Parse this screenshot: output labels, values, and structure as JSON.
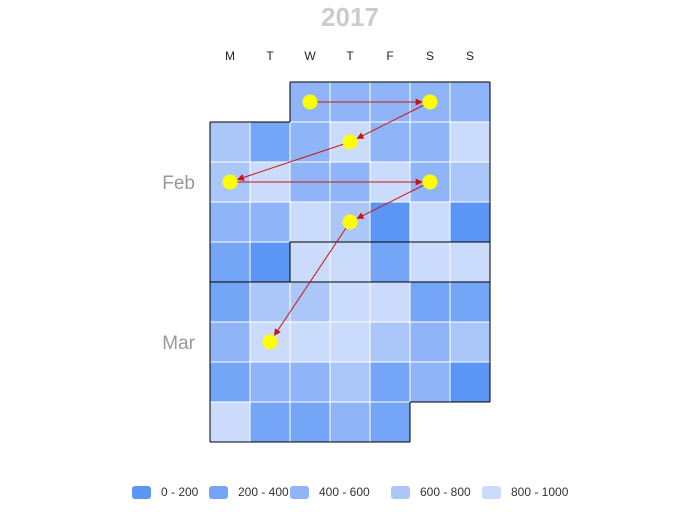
{
  "chart_data": {
    "type": "heatmap",
    "title": "2017",
    "weekdays": [
      "M",
      "T",
      "W",
      "T",
      "F",
      "S",
      "S"
    ],
    "month_labels": [
      {
        "label": "Feb",
        "week": 2
      },
      {
        "label": "Mar",
        "week": 6
      }
    ],
    "colors": {
      "0-200": "#5b95f5",
      "200-400": "#75a5f6",
      "400-600": "#8fb4f8",
      "600-800": "#abc7fa",
      "800-1000": "#cadbfb",
      "grid_line": "#ffffff",
      "border": "#000000",
      "marker": "#ffff00",
      "arrow": "#cc1111"
    },
    "legend": [
      {
        "label": "0 - 200",
        "bin": "0-200"
      },
      {
        "label": "200 - 400",
        "bin": "200-400"
      },
      {
        "label": "400 - 600",
        "bin": "400-600"
      },
      {
        "label": "600 - 800",
        "bin": "600-800"
      },
      {
        "label": "800 - 1000",
        "bin": "800-1000"
      }
    ],
    "weeks": [
      [
        null,
        null,
        "400-600",
        "400-600",
        "400-600",
        "400-600",
        "400-600"
      ],
      [
        "600-800",
        "200-400",
        "400-600",
        "800-1000",
        "400-600",
        "400-600",
        "800-1000"
      ],
      [
        "600-800",
        "800-1000",
        "400-600",
        "400-600",
        "800-1000",
        "400-600",
        "600-800"
      ],
      [
        "400-600",
        "400-600",
        "800-1000",
        "600-800",
        "0-200",
        "800-1000",
        "0-200"
      ],
      [
        "200-400",
        "0-200",
        "800-1000",
        "800-1000",
        "200-400",
        "800-1000",
        "800-1000"
      ],
      [
        "200-400",
        "600-800",
        "600-800",
        "800-1000",
        "800-1000",
        "200-400",
        "200-400"
      ],
      [
        "400-600",
        "800-1000",
        "800-1000",
        "800-1000",
        "600-800",
        "400-600",
        "600-800"
      ],
      [
        "200-400",
        "400-600",
        "400-600",
        "600-800",
        "200-400",
        "400-600",
        "0-200"
      ],
      [
        "800-1000",
        "200-400",
        "200-400",
        "400-600",
        "200-400",
        null,
        null
      ]
    ],
    "month_boundaries": [
      {
        "week": 0,
        "start_day": 2
      },
      {
        "week": 5,
        "start_day": 0
      }
    ],
    "path_points": [
      {
        "week": 0,
        "day": 2
      },
      {
        "week": 0,
        "day": 5
      },
      {
        "week": 1,
        "day": 3
      },
      {
        "week": 2,
        "day": 0
      },
      {
        "week": 2,
        "day": 5
      },
      {
        "week": 3,
        "day": 3
      },
      {
        "week": 6,
        "day": 1
      }
    ]
  }
}
